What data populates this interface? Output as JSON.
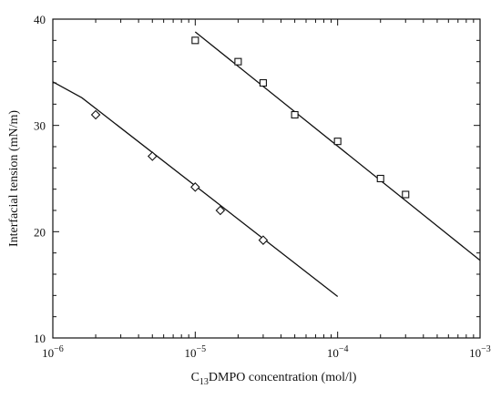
{
  "chart_data": {
    "type": "scatter",
    "xlabel": "C13DMPO concentration (mol/l)",
    "xlabel_parts": [
      "C",
      "13",
      "DMPO concentration (mol/l)"
    ],
    "ylabel": "Interfacial tension (mN/m)",
    "xscale": "log",
    "xlim": [
      1e-06,
      0.001
    ],
    "ylim": [
      10,
      40
    ],
    "x_ticks": [
      {
        "value": 1e-06,
        "base": "10",
        "exp": "−6"
      },
      {
        "value": 1e-05,
        "base": "10",
        "exp": "−5"
      },
      {
        "value": 0.0001,
        "base": "10",
        "exp": "−4"
      },
      {
        "value": 0.001,
        "base": "10",
        "exp": "−3"
      }
    ],
    "y_ticks": [
      "10",
      "20",
      "30",
      "40"
    ],
    "series": [
      {
        "marker": "square",
        "x": [
          1e-05,
          2e-05,
          3e-05,
          5e-05,
          0.0001,
          0.0002,
          0.0003
        ],
        "y": [
          38.0,
          36.0,
          34.0,
          31.0,
          28.5,
          25.0,
          23.5
        ],
        "fit": {
          "x": [
            1e-05,
            0.001
          ],
          "y": [
            38.8,
            17.3
          ]
        }
      },
      {
        "marker": "diamond",
        "x": [
          2e-06,
          5e-06,
          1e-05,
          1.5e-05,
          3e-05
        ],
        "y": [
          31.0,
          27.1,
          24.2,
          22.0,
          19.2
        ],
        "fit": {
          "x": [
            1e-06,
            1.6e-06,
            0.0001
          ],
          "y": [
            34.1,
            32.6,
            13.9
          ]
        }
      }
    ],
    "grid": false,
    "legend": "none"
  }
}
